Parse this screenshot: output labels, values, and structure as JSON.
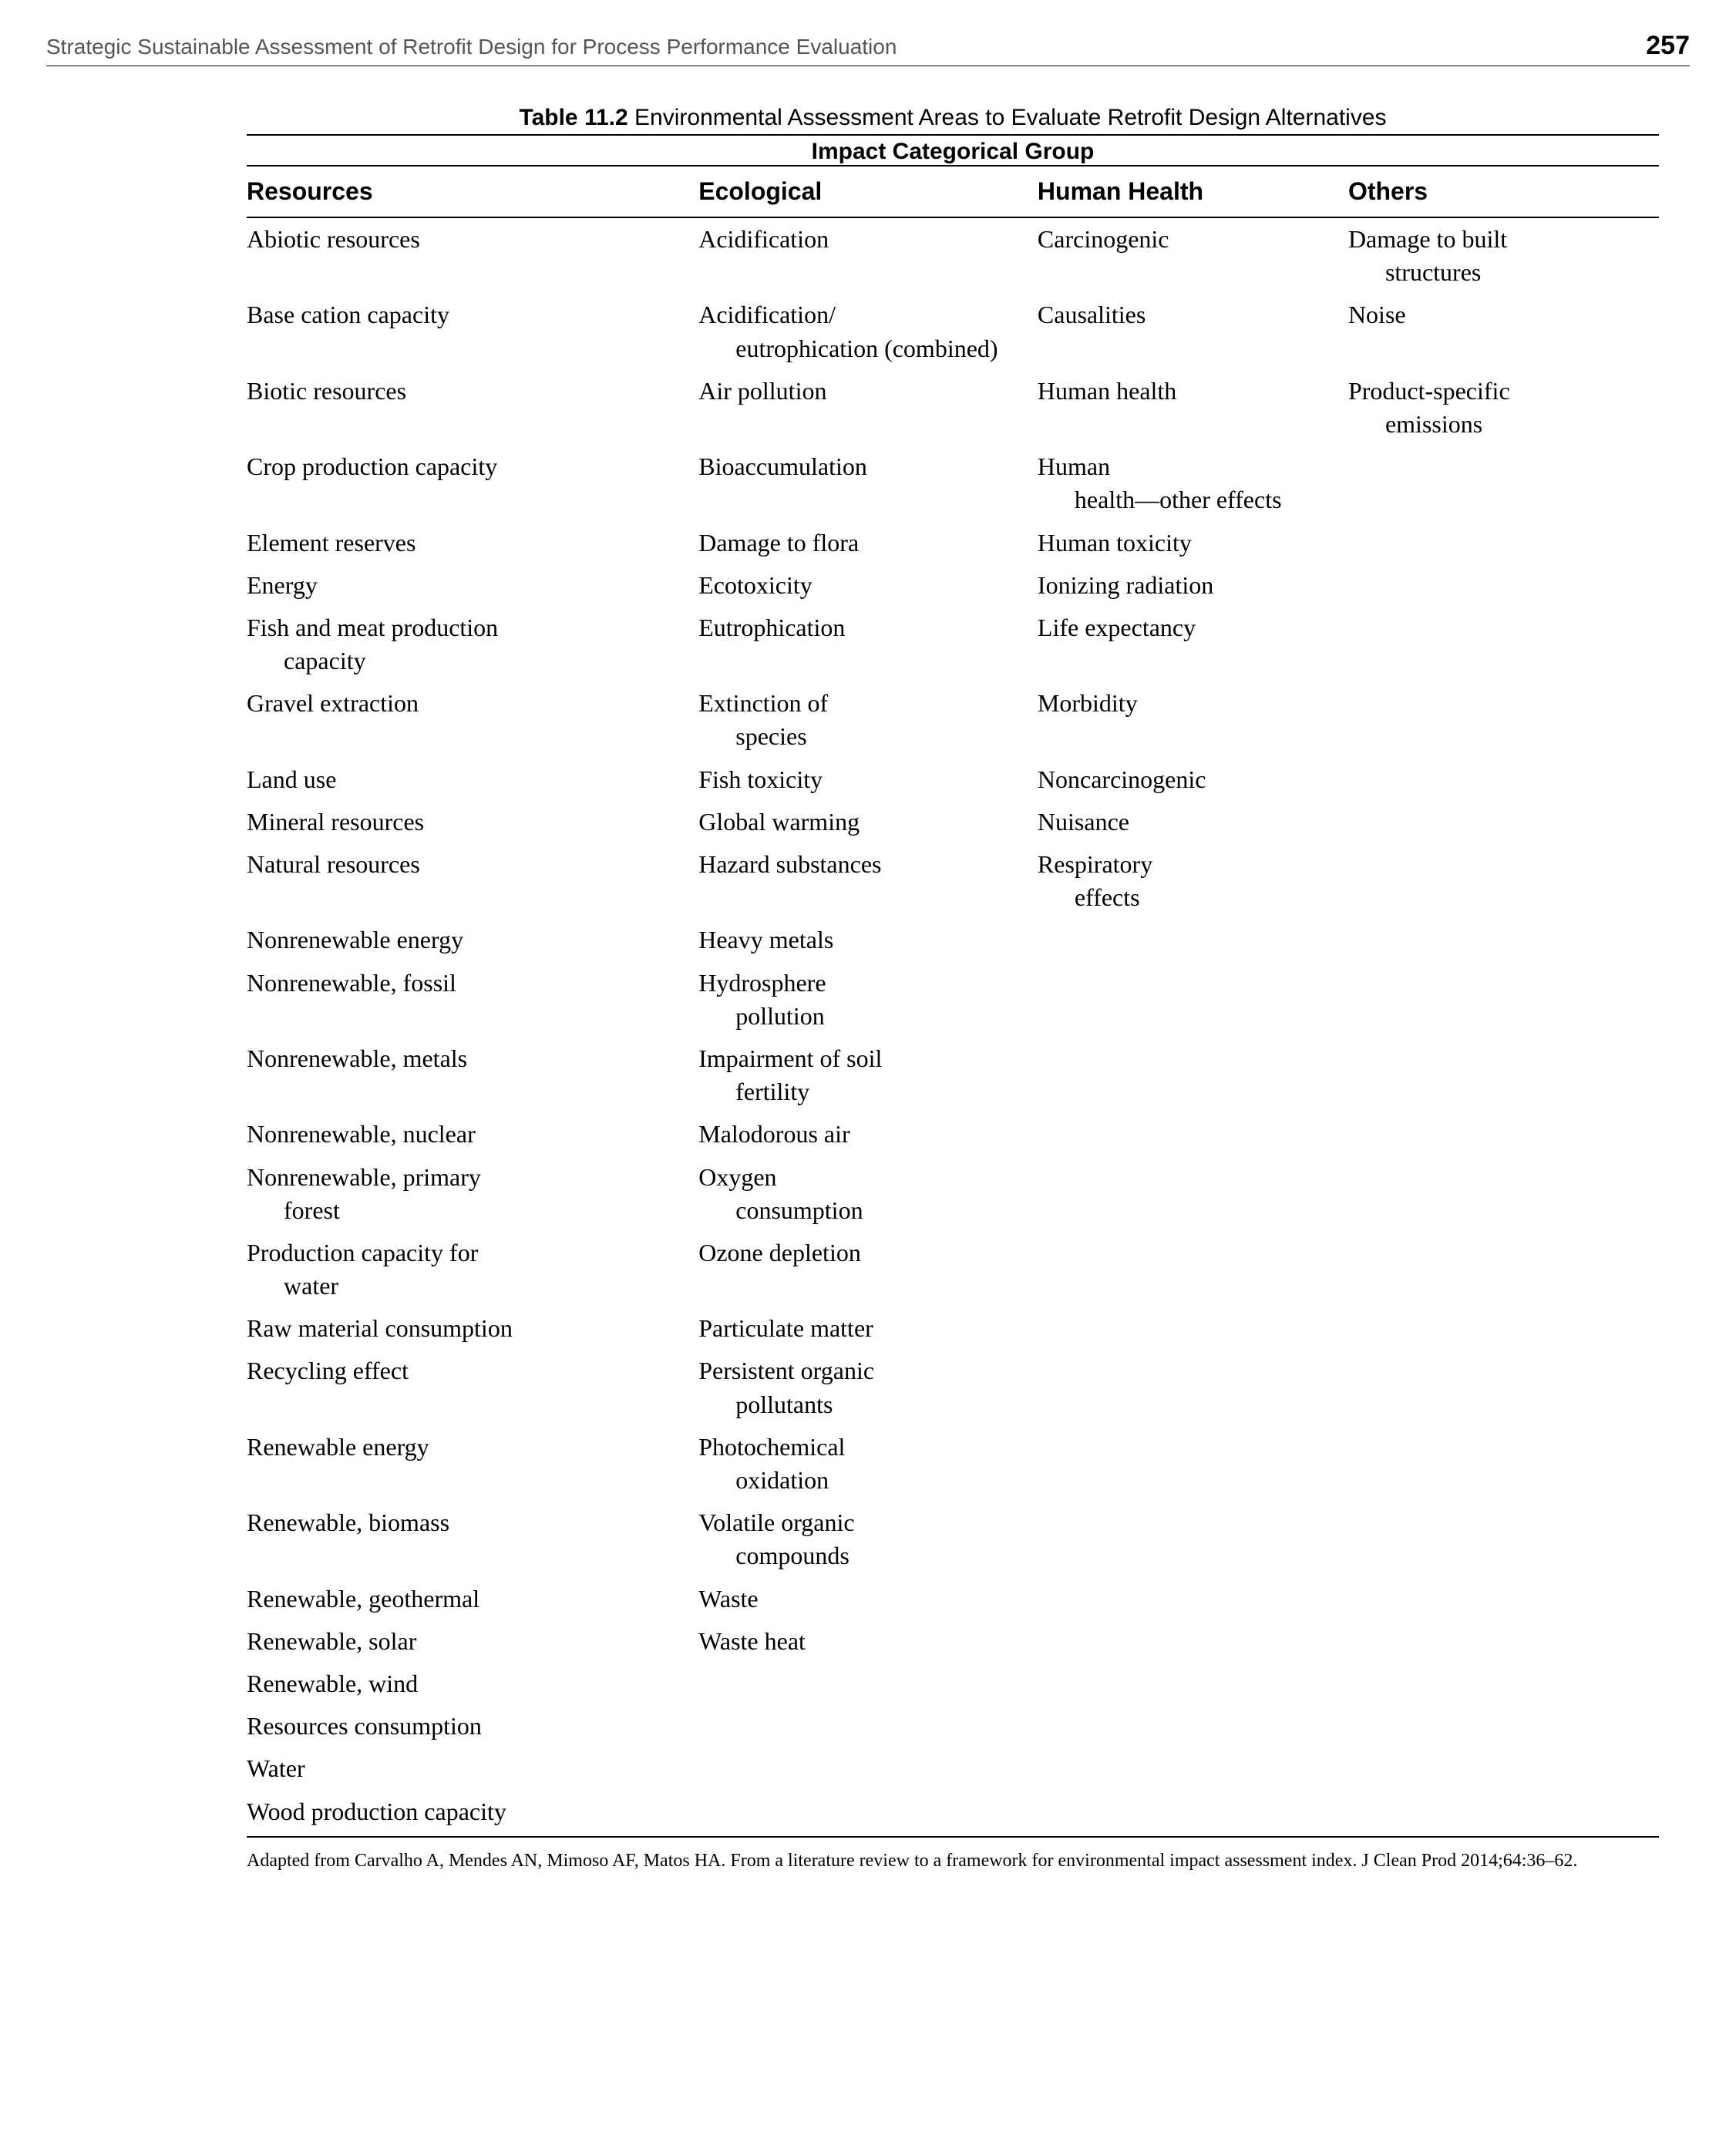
{
  "header": {
    "running_head": "Strategic Sustainable Assessment of Retrofit Design for Process Performance Evaluation",
    "page_number": "257"
  },
  "table": {
    "caption_label": "Table 11.2",
    "caption_title": "Environmental Assessment Areas to Evaluate Retrofit Design Alternatives",
    "subtitle": "Impact Categorical Group",
    "columns": [
      "Resources",
      "Ecological",
      "Human Health",
      "Others"
    ],
    "rows": [
      {
        "resources": "Abiotic resources",
        "ecological": "Acidification",
        "human_health": "Carcinogenic",
        "others": "Damage to built",
        "others_indent": "structures"
      },
      {
        "resources": "Base cation capacity",
        "ecological": "Acidification/",
        "ecological_indent": "eutrophication (combined)",
        "human_health": "Causalities",
        "others": "Noise"
      },
      {
        "resources": "Biotic resources",
        "ecological": "Air pollution",
        "human_health": "Human health",
        "others": "Product-specific",
        "others_indent": "emissions"
      },
      {
        "resources": "Crop production capacity",
        "ecological": "Bioaccumulation",
        "human_health": "Human",
        "human_health_indent": "health—other effects"
      },
      {
        "resources": "Element reserves",
        "ecological": "Damage to flora",
        "human_health": "Human toxicity"
      },
      {
        "resources": "Energy",
        "ecological": "Ecotoxicity",
        "human_health": "Ionizing radiation"
      },
      {
        "resources": "Fish and meat production",
        "resources_indent": "capacity",
        "ecological": "Eutrophication",
        "human_health": "Life expectancy"
      },
      {
        "resources": "Gravel extraction",
        "ecological": "Extinction of",
        "ecological_indent": "species",
        "human_health": "Morbidity"
      },
      {
        "resources": "Land use",
        "ecological": "Fish toxicity",
        "human_health": "Noncarcinogenic"
      },
      {
        "resources": "Mineral resources",
        "ecological": "Global warming",
        "human_health": "Nuisance"
      },
      {
        "resources": "Natural resources",
        "ecological": "Hazard substances",
        "human_health": "Respiratory",
        "human_health_indent": "effects"
      },
      {
        "resources": "Nonrenewable energy",
        "ecological": "Heavy metals"
      },
      {
        "resources": "Nonrenewable, fossil",
        "ecological": "Hydrosphere",
        "ecological_indent": "pollution"
      },
      {
        "resources": "Nonrenewable, metals",
        "ecological": "Impairment of soil",
        "ecological_indent": "fertility"
      },
      {
        "resources": "Nonrenewable, nuclear",
        "ecological": "Malodorous air"
      },
      {
        "resources": "Nonrenewable, primary",
        "resources_indent": "forest",
        "ecological": "Oxygen",
        "ecological_indent": "consumption"
      },
      {
        "resources": "Production capacity for",
        "resources_indent": "water",
        "ecological": "Ozone depletion"
      },
      {
        "resources": "Raw material consumption",
        "ecological": "Particulate matter"
      },
      {
        "resources": "Recycling effect",
        "ecological": "Persistent organic",
        "ecological_indent": "pollutants"
      },
      {
        "resources": "Renewable energy",
        "ecological": "Photochemical",
        "ecological_indent": "oxidation"
      },
      {
        "resources": "Renewable, biomass",
        "ecological": "Volatile organic",
        "ecological_indent": "compounds"
      },
      {
        "resources": "Renewable, geothermal",
        "ecological": "Waste"
      },
      {
        "resources": "Renewable, solar",
        "ecological": "Waste heat"
      },
      {
        "resources": "Renewable, wind"
      },
      {
        "resources": "Resources consumption"
      },
      {
        "resources": "Water"
      },
      {
        "resources": "Wood production capacity"
      }
    ],
    "footnote": "Adapted from Carvalho A, Mendes AN, Mimoso AF, Matos HA. From a literature review to a framework for environmental impact assessment index. J Clean Prod 2014;64:36–62."
  }
}
